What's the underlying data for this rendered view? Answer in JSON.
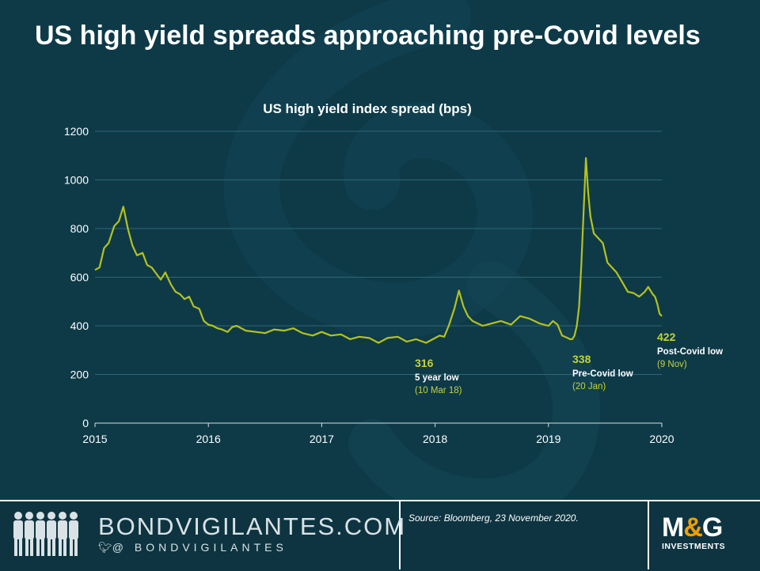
{
  "page": {
    "title": "US high yield spreads approaching pre-Covid levels"
  },
  "footer": {
    "brand_name": "BONDVIGILANTES.COM",
    "brand_handle": "@ BONDVIGILANTES",
    "source": "Source: Bloomberg, 23 November 2020.",
    "logo_main_1": "M",
    "logo_amp": "&",
    "logo_main_2": "G",
    "logo_sub": "INVESTMENTS"
  },
  "colors": {
    "background": "#0e3a48",
    "line": "#b4c21e",
    "annotation_value": "#c4d23c",
    "text": "#ffffff"
  },
  "chart_data": {
    "type": "line",
    "title": "US high yield index spread (bps)",
    "xlabel": "",
    "ylabel": "",
    "xlim": [
      2015,
      2020
    ],
    "ylim": [
      0,
      1200
    ],
    "x_ticks": [
      "2015",
      "2016",
      "2017",
      "2018",
      "2019",
      "2020"
    ],
    "y_ticks": [
      "0",
      "200",
      "400",
      "600",
      "800",
      "1000",
      "1200"
    ],
    "grid": "horizontal",
    "series": [
      {
        "x": [
          2015.0,
          2015.04,
          2015.08,
          2015.12,
          2015.17,
          2015.21,
          2015.25,
          2015.29,
          2015.33,
          2015.37,
          2015.42,
          2015.46,
          2015.5,
          2015.54,
          2015.58,
          2015.62,
          2015.67,
          2015.71,
          2015.75,
          2015.79,
          2015.83,
          2015.87,
          2015.92,
          2015.96,
          2016.0,
          2016.04,
          2016.08,
          2016.12,
          2016.17,
          2016.21,
          2016.25,
          2016.33,
          2016.42,
          2016.5,
          2016.58,
          2016.67,
          2016.75,
          2016.83,
          2016.92,
          2017.0,
          2017.08,
          2017.17,
          2017.25,
          2017.33,
          2017.42,
          2017.5,
          2017.58,
          2017.67,
          2017.75,
          2017.83,
          2017.92,
          2018.0,
          2018.04,
          2018.08,
          2018.12,
          2018.17,
          2018.21,
          2018.25,
          2018.29,
          2018.33,
          2018.42,
          2018.5,
          2018.58,
          2018.67,
          2018.75,
          2018.83,
          2018.92,
          2019.0,
          2019.04,
          2019.08,
          2019.12,
          2019.17,
          2019.19,
          2019.21,
          2019.23,
          2019.25,
          2019.27,
          2019.29,
          2019.31,
          2019.33,
          2019.35,
          2019.37,
          2019.4,
          2019.44,
          2019.48,
          2019.52,
          2019.56,
          2019.6,
          2019.65,
          2019.7,
          2019.75,
          2019.8,
          2019.85,
          2019.88,
          2019.92,
          2019.94,
          2019.96,
          2019.98,
          2020.0
        ],
        "y": [
          630,
          640,
          720,
          740,
          810,
          830,
          890,
          800,
          730,
          690,
          700,
          650,
          640,
          615,
          590,
          620,
          570,
          540,
          530,
          510,
          520,
          480,
          470,
          420,
          405,
          400,
          390,
          385,
          375,
          395,
          400,
          380,
          375,
          370,
          385,
          380,
          390,
          370,
          360,
          375,
          360,
          365,
          345,
          355,
          350,
          330,
          350,
          355,
          335,
          345,
          330,
          350,
          360,
          355,
          400,
          470,
          545,
          480,
          440,
          420,
          400,
          410,
          420,
          405,
          440,
          430,
          410,
          400,
          420,
          405,
          360,
          350,
          345,
          345,
          360,
          400,
          480,
          650,
          870,
          1090,
          950,
          850,
          780,
          760,
          740,
          660,
          640,
          620,
          580,
          540,
          535,
          520,
          540,
          560,
          530,
          520,
          490,
          450,
          440
        ]
      }
    ],
    "annotations": [
      {
        "value": "316",
        "label": "5 year low",
        "date": "(10 Mar 18)"
      },
      {
        "value": "338",
        "label": "Pre-Covid low",
        "date": "(20 Jan)"
      },
      {
        "value": "422",
        "label": "Post-Covid  low",
        "date": "(9 Nov)"
      }
    ]
  }
}
